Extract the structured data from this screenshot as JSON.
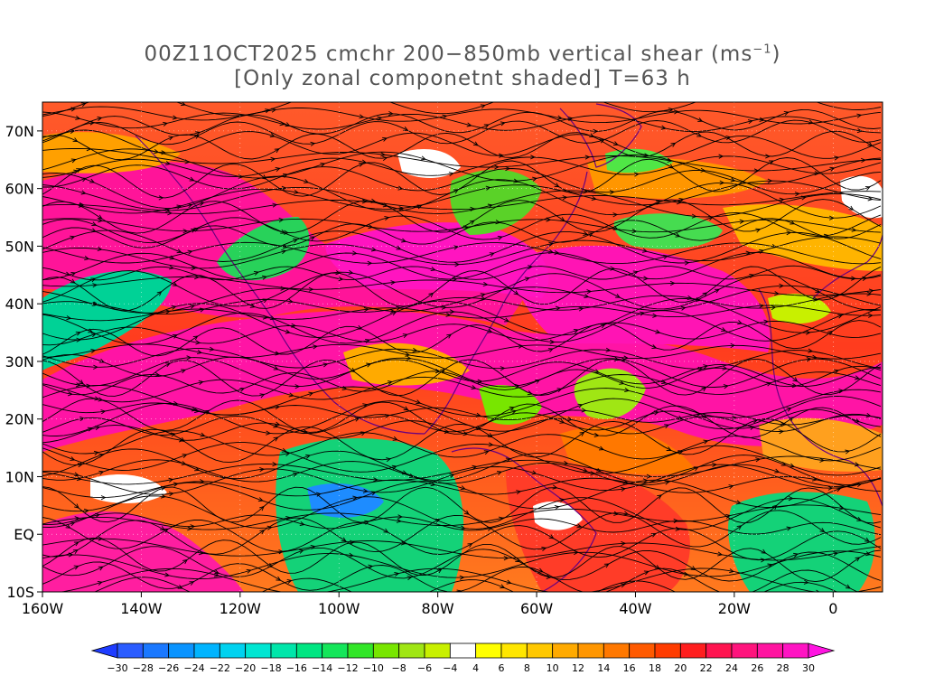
{
  "title": {
    "line1_prefix": "00Z11OCT2025 cmchr 200−850mb vertical shear (ms",
    "line1_sup": "−1",
    "line1_suffix": ")",
    "line2": "[Only zonal componetnt shaded] T=63 h"
  },
  "map": {
    "lon_range": [
      -160,
      10
    ],
    "lat_range": [
      -10,
      75
    ],
    "lon_ticks": [
      {
        "lon": -160,
        "label": "160W"
      },
      {
        "lon": -140,
        "label": "140W"
      },
      {
        "lon": -120,
        "label": "120W"
      },
      {
        "lon": -100,
        "label": "100W"
      },
      {
        "lon": -80,
        "label": "80W"
      },
      {
        "lon": -60,
        "label": "60W"
      },
      {
        "lon": -40,
        "label": "40W"
      },
      {
        "lon": -20,
        "label": "20W"
      },
      {
        "lon": 0,
        "label": "0"
      }
    ],
    "lat_ticks": [
      {
        "lat": -10,
        "label": "10S"
      },
      {
        "lat": 0,
        "label": "EQ"
      },
      {
        "lat": 10,
        "label": "10N"
      },
      {
        "lat": 20,
        "label": "20N"
      },
      {
        "lat": 30,
        "label": "30N"
      },
      {
        "lat": 40,
        "label": "40N"
      },
      {
        "lat": 50,
        "label": "50N"
      },
      {
        "lat": 60,
        "label": "60N"
      },
      {
        "lat": 70,
        "label": "70N"
      }
    ],
    "shading_variable": "zonal component of 200-850mb vertical shear",
    "streamline_color": "#000000",
    "coastline_color": "#6a0080"
  },
  "colorbar": {
    "labels": [
      "−30",
      "−28",
      "−26",
      "−24",
      "−22",
      "−20",
      "−18",
      "−16",
      "−14",
      "−12",
      "−10",
      "−8",
      "−6",
      "−4",
      "4",
      "6",
      "8",
      "10",
      "12",
      "14",
      "16",
      "18",
      "20",
      "22",
      "24",
      "26",
      "28",
      "30"
    ],
    "colors": [
      "#1e3cff",
      "#2a5cff",
      "#1a78ff",
      "#0a94ff",
      "#00b4ff",
      "#00d2f0",
      "#00e6d2",
      "#00e6aa",
      "#00e682",
      "#14e65a",
      "#32e628",
      "#78e600",
      "#a0e614",
      "#c8f000",
      "#ffffff",
      "#ffff00",
      "#ffe600",
      "#ffc800",
      "#ffaa00",
      "#ff9600",
      "#ff7800",
      "#ff5a00",
      "#ff3c00",
      "#ff1e1e",
      "#ff1450",
      "#ff147d",
      "#ff14a0",
      "#ff14c3",
      "#ff14e1"
    ]
  }
}
